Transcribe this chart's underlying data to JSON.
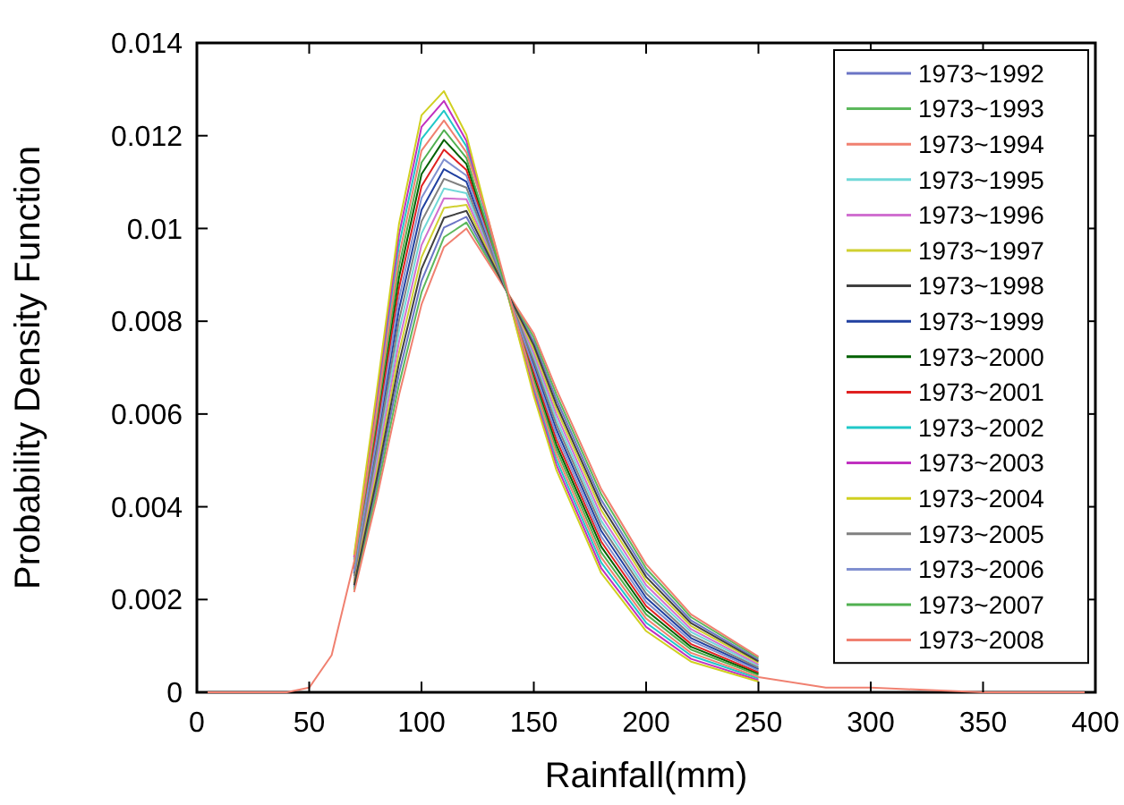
{
  "chart_data": {
    "type": "line",
    "xlabel": "Rainfall(mm)",
    "ylabel": "Probability Density Function",
    "x": [
      70,
      80,
      90,
      100,
      110,
      120,
      150,
      160,
      180,
      200,
      220,
      250
    ],
    "xlim": [
      0,
      400
    ],
    "xticks": [
      0,
      50,
      100,
      150,
      200,
      250,
      300,
      350,
      400
    ],
    "ylim": [
      0,
      0.014
    ],
    "yticks": [
      0,
      0.002,
      0.004,
      0.006,
      0.008,
      0.01,
      0.012,
      0.014
    ],
    "legend": "top right",
    "series": [
      {
        "name": "1973~1992",
        "color": "#6b75c5",
        "values": [
          0.00226,
          0.00445,
          0.00687,
          0.00887,
          0.01002,
          0.01025,
          0.00756,
          0.00632,
          0.00415,
          0.00258,
          0.00155,
          0.0007
        ]
      },
      {
        "name": "1973~1993",
        "color": "#5cb85c",
        "values": [
          0.00221,
          0.0043,
          0.00664,
          0.00862,
          0.00981,
          0.01013,
          0.00765,
          0.00643,
          0.00427,
          0.00267,
          0.00162,
          0.00074
        ]
      },
      {
        "name": "1973~1994",
        "color": "#f08070",
        "values": [
          0.00216,
          0.00416,
          0.00641,
          0.00836,
          0.0096,
          0.01,
          0.00773,
          0.00654,
          0.00438,
          0.00276,
          0.00168,
          0.00077
        ]
      },
      {
        "name": "1973~1995",
        "color": "#70d8d8",
        "values": [
          0.00246,
          0.00502,
          0.00779,
          0.00989,
          0.01086,
          0.01076,
          0.00723,
          0.00589,
          0.0037,
          0.00222,
          0.0013,
          0.00057
        ]
      },
      {
        "name": "1973~1996",
        "color": "#d070d0",
        "values": [
          0.00241,
          0.00488,
          0.00756,
          0.00964,
          0.01065,
          0.01063,
          0.00731,
          0.006,
          0.00381,
          0.00231,
          0.00136,
          0.0006
        ]
      },
      {
        "name": "1973~1997",
        "color": "#d0d030",
        "values": [
          0.00236,
          0.00473,
          0.00733,
          0.00938,
          0.01044,
          0.01051,
          0.0074,
          0.00611,
          0.00393,
          0.0024,
          0.00143,
          0.00064
        ]
      },
      {
        "name": "1973~1998",
        "color": "#404040",
        "values": [
          0.00231,
          0.00459,
          0.0071,
          0.00913,
          0.01023,
          0.01038,
          0.00748,
          0.00621,
          0.00404,
          0.00249,
          0.00149,
          0.00067
        ]
      },
      {
        "name": "1973~1999",
        "color": "#2040a0",
        "values": [
          0.00256,
          0.00531,
          0.00826,
          0.0104,
          0.01128,
          0.01101,
          0.00706,
          0.00567,
          0.00348,
          0.00204,
          0.00117,
          0.0005
        ]
      },
      {
        "name": "1973~2000",
        "color": "#006000",
        "values": [
          0.00271,
          0.00574,
          0.00895,
          0.01117,
          0.01191,
          0.01139,
          0.00681,
          0.00534,
          0.00314,
          0.00177,
          0.00098,
          0.0004
        ]
      },
      {
        "name": "1973~2001",
        "color": "#e02020",
        "values": [
          0.00266,
          0.0056,
          0.00872,
          0.01091,
          0.0117,
          0.01126,
          0.0069,
          0.00545,
          0.00325,
          0.00186,
          0.00104,
          0.00043
        ]
      },
      {
        "name": "1973~2002",
        "color": "#20c8c8",
        "values": [
          0.00286,
          0.00617,
          0.00964,
          0.01193,
          0.01254,
          0.01177,
          0.00656,
          0.00502,
          0.0028,
          0.0015,
          0.00079,
          0.0003
        ]
      },
      {
        "name": "1973~2003",
        "color": "#c030c0",
        "values": [
          0.00291,
          0.00632,
          0.00987,
          0.01219,
          0.01275,
          0.01189,
          0.00647,
          0.00491,
          0.00268,
          0.00141,
          0.00072,
          0.00026
        ]
      },
      {
        "name": "1973~2004",
        "color": "#d0d020",
        "values": [
          0.00296,
          0.00646,
          0.0101,
          0.01244,
          0.01296,
          0.01202,
          0.00639,
          0.0048,
          0.00257,
          0.00132,
          0.00066,
          0.00023
        ]
      },
      {
        "name": "1973~2005",
        "color": "#808080",
        "values": [
          0.00251,
          0.00517,
          0.00802,
          0.01015,
          0.01107,
          0.01088,
          0.00714,
          0.00578,
          0.00359,
          0.00213,
          0.00123,
          0.00053
        ]
      },
      {
        "name": "1973~2006",
        "color": "#8090d0",
        "values": [
          0.00261,
          0.00545,
          0.00849,
          0.01066,
          0.01149,
          0.01114,
          0.00698,
          0.00556,
          0.00336,
          0.00195,
          0.00111,
          0.00047
        ]
      },
      {
        "name": "1973~2007",
        "color": "#50b050",
        "values": [
          0.00276,
          0.00589,
          0.00918,
          0.01142,
          0.01212,
          0.01152,
          0.00673,
          0.00524,
          0.00302,
          0.00168,
          0.00092,
          0.00037
        ]
      },
      {
        "name": "1973~2008",
        "color": "#f08070",
        "x": [
          0,
          30,
          40,
          50,
          60,
          70,
          80,
          90,
          100,
          110,
          120,
          130,
          140,
          150,
          160,
          180,
          200,
          220,
          250,
          280,
          300,
          350,
          400
        ],
        "values": [
          0,
          0,
          0,
          0.0001,
          0.0008,
          0.00281,
          0.00603,
          0.00941,
          0.01168,
          0.01233,
          0.01164,
          0.01015,
          0.00837,
          0.00664,
          0.00513,
          0.00291,
          0.00159,
          0.00085,
          0.00033,
          0.0001,
          0.0001,
          0,
          0
        ]
      }
    ]
  }
}
